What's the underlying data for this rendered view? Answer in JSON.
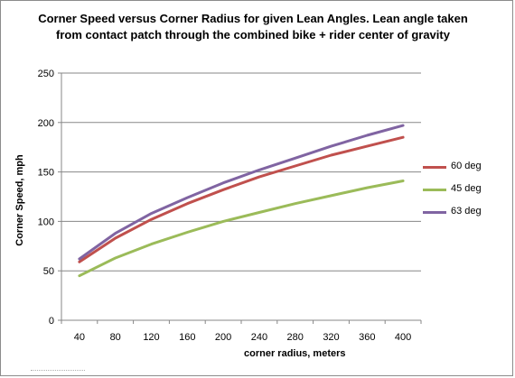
{
  "chart_data": {
    "type": "line",
    "title": "Corner Speed versus Corner Radius  for given Lean Angles.  Lean angle taken from contact patch through the combined bike + rider center of gravity",
    "xlabel": "corner radius,  meters",
    "ylabel": "Corner Speed, mph",
    "categories": [
      "40",
      "80",
      "120",
      "160",
      "200",
      "240",
      "280",
      "320",
      "360",
      "400"
    ],
    "ylim": [
      0,
      250
    ],
    "yticks": [
      0,
      50,
      100,
      150,
      200,
      250
    ],
    "grid": "horizontal",
    "legend_position": "right",
    "series": [
      {
        "name": "60 deg",
        "color": "#c0504d",
        "values": [
          59,
          83,
          102,
          118,
          132,
          145,
          156,
          167,
          176,
          185
        ]
      },
      {
        "name": "45 deg",
        "color": "#9bbb59",
        "values": [
          45,
          63,
          77,
          89,
          100,
          109,
          118,
          126,
          134,
          141
        ]
      },
      {
        "name": "63 deg",
        "color": "#8064a2",
        "values": [
          62,
          88,
          108,
          124,
          139,
          152,
          164,
          176,
          187,
          197
        ]
      }
    ]
  }
}
